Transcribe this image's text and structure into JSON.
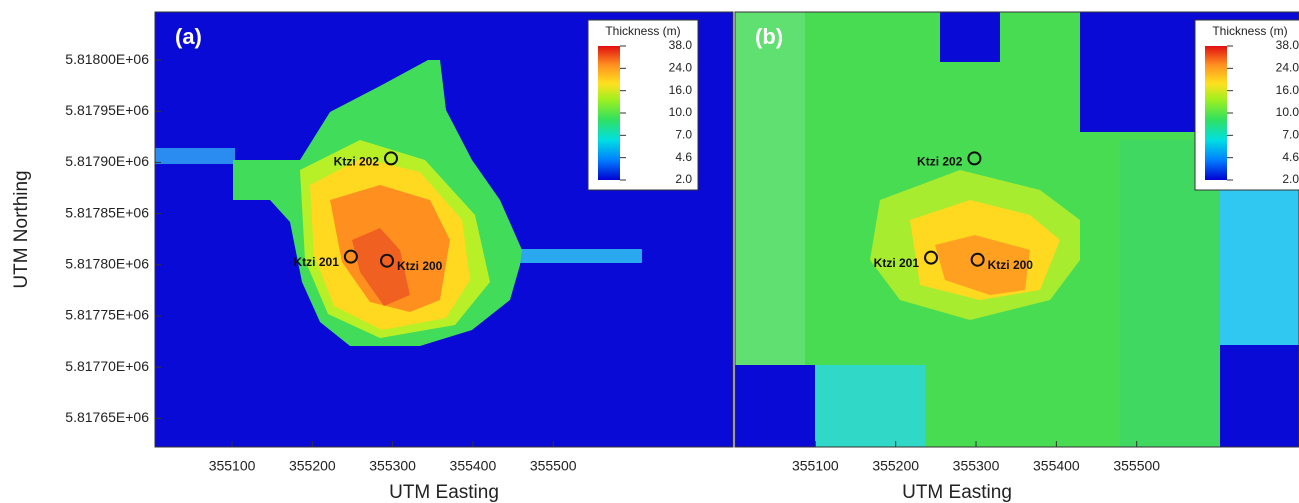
{
  "chart_data": [
    {
      "type": "heatmap",
      "panel_label": "(a)",
      "x_label": "UTM Easting",
      "y_label": "UTM Northing",
      "xlim": [
        355004,
        355724
      ],
      "xticks": [
        355100,
        355200,
        355300,
        355400,
        355500
      ],
      "ylim": [
        5817622,
        5818047
      ],
      "yticks": [
        {
          "value": 5818000,
          "label": "5.81800E+06"
        },
        {
          "value": 5817950,
          "label": "5.81795E+06"
        },
        {
          "value": 5817900,
          "label": "5.81790E+06"
        },
        {
          "value": 5817850,
          "label": "5.81785E+06"
        },
        {
          "value": 5817800,
          "label": "5.81780E+06"
        },
        {
          "value": 5817750,
          "label": "5.81775E+06"
        },
        {
          "value": 5817700,
          "label": "5.81770E+06"
        },
        {
          "value": 5817650,
          "label": "5.81765E+06"
        }
      ],
      "colorbar_title": "Thickness (m)",
      "colorbar_ticks": [
        {
          "value": 38,
          "label": "38.0"
        },
        {
          "value": 24,
          "label": "24.0"
        },
        {
          "value": 16,
          "label": "16.0"
        },
        {
          "value": 10,
          "label": "10.0"
        },
        {
          "value": 7,
          "label": "7.0"
        },
        {
          "value": 4.6,
          "label": "4.6"
        },
        {
          "value": 2,
          "label": "2.0"
        }
      ],
      "wells": {
        "names": [
          "Ktzi 202",
          "Ktzi 201",
          "Ktzi 200"
        ],
        "x": [
          355298,
          355248,
          355293
        ],
        "y": [
          5817904,
          5817808,
          5817804
        ]
      }
    },
    {
      "type": "heatmap",
      "panel_label": "(b)",
      "x_label": "UTM Easting",
      "xlim": [
        355000,
        355702
      ],
      "xticks": [
        355100,
        355200,
        355300,
        355400,
        355500
      ],
      "ylim": [
        5817622,
        5818047
      ],
      "colorbar_title": "Thickness (m)",
      "colorbar_ticks": [
        {
          "value": 38,
          "label": "38.0"
        },
        {
          "value": 24,
          "label": "24.0"
        },
        {
          "value": 16,
          "label": "16.0"
        },
        {
          "value": 10,
          "label": "10.0"
        },
        {
          "value": 7,
          "label": "7.0"
        },
        {
          "value": 4.6,
          "label": "4.6"
        },
        {
          "value": 2,
          "label": "2.0"
        }
      ],
      "wells": {
        "names": [
          "Ktzi 202",
          "Ktzi 201",
          "Ktzi 200"
        ],
        "x": [
          355298,
          355244,
          355302
        ],
        "y": [
          5817904,
          5817807,
          5817805
        ]
      }
    }
  ]
}
